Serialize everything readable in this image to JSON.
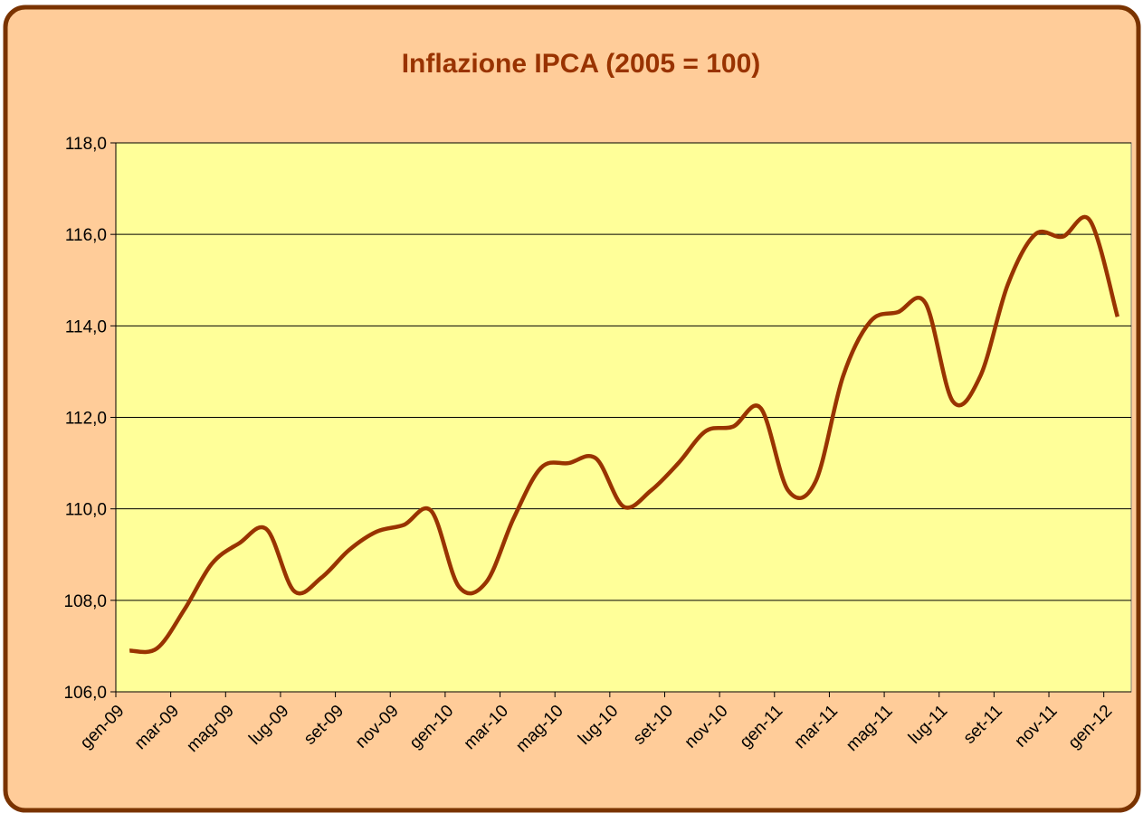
{
  "chart_data": {
    "type": "line",
    "title": "Inflazione IPCA (2005 = 100)",
    "categories": [
      "gen-09",
      null,
      "mar-09",
      null,
      "mag-09",
      null,
      "lug-09",
      null,
      "set-09",
      null,
      "nov-09",
      null,
      "gen-10",
      null,
      "mar-10",
      null,
      "mag-10",
      null,
      "lug-10",
      null,
      "set-10",
      null,
      "nov-10",
      null,
      "gen-11",
      null,
      "mar-11",
      null,
      "mag-11",
      null,
      "lug-11",
      null,
      "set-11",
      null,
      "nov-11",
      null,
      "gen-12"
    ],
    "series": [
      {
        "color": "#993300",
        "values": [
          106.9,
          106.95,
          107.8,
          108.8,
          109.25,
          109.55,
          108.2,
          108.5,
          109.1,
          109.5,
          109.65,
          109.95,
          108.3,
          108.4,
          109.8,
          110.9,
          111.0,
          111.1,
          110.05,
          110.4,
          111.0,
          111.7,
          111.8,
          112.2,
          110.4,
          110.6,
          112.9,
          114.1,
          114.3,
          114.5,
          112.35,
          112.9,
          114.9,
          116.0,
          115.95,
          116.3,
          114.2
        ]
      }
    ],
    "ylim": [
      106,
      118
    ],
    "yticks": [
      {
        "value": 106,
        "label": "106,0"
      },
      {
        "value": 108,
        "label": "108,0"
      },
      {
        "value": 110,
        "label": "110,0"
      },
      {
        "value": 112,
        "label": "112,0"
      },
      {
        "value": 114,
        "label": "114,0"
      },
      {
        "value": 116,
        "label": "116,0"
      },
      {
        "value": 118,
        "label": "118,0"
      }
    ],
    "grid": true
  }
}
